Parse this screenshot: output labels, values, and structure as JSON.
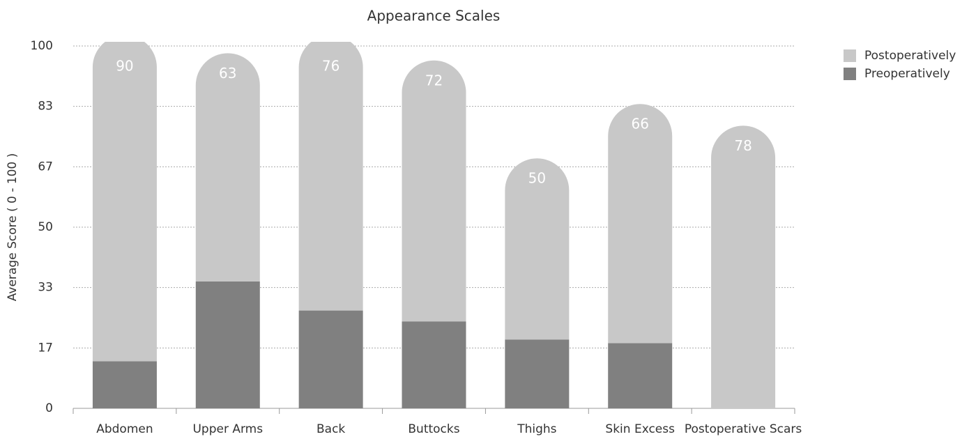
{
  "chart_data": {
    "type": "stacked-bar",
    "title": "Appearance Scales",
    "y_label": "Average Score ( 0 - 100 )",
    "categories": [
      "Abdomen",
      "Upper Arms",
      "Back",
      "Buttocks",
      "Thighs",
      "Skin Excess",
      "Postoperative Scars"
    ],
    "series": [
      {
        "name": "Preoperatively",
        "color": "#808080",
        "values": [
          13,
          35,
          27,
          24,
          19,
          18,
          0
        ]
      },
      {
        "name": "Postoperatively",
        "color": "#c8c8c8",
        "values": [
          90,
          63,
          76,
          72,
          50,
          66,
          78
        ]
      }
    ],
    "ylim": [
      0,
      100
    ],
    "yticks": [
      0,
      {
        "value": 16.6667,
        "label": "17"
      },
      {
        "value": 33.3333,
        "label": "33"
      },
      50,
      {
        "value": 66.6667,
        "label": "67"
      },
      {
        "value": 83.3333,
        "label": "83"
      },
      100
    ],
    "grid": true,
    "legend": "top-right"
  }
}
